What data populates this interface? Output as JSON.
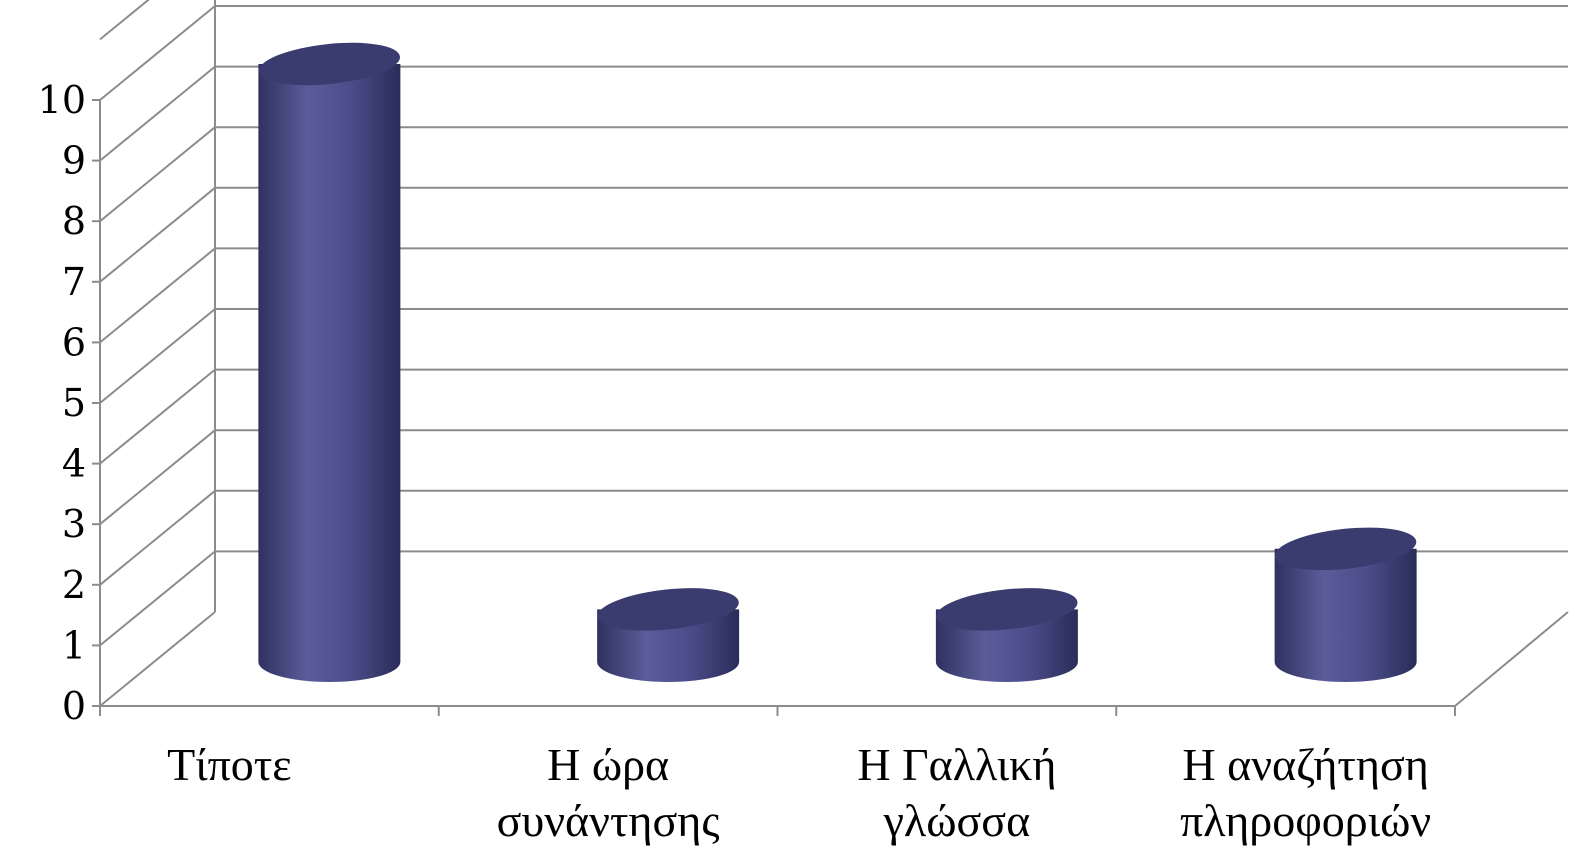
{
  "chart_data": {
    "type": "bar",
    "style": "3d-cylinder",
    "categories": [
      [
        "Τίποτε"
      ],
      [
        "Η ώρα",
        "συνάντησης"
      ],
      [
        "Η Γαλλική",
        "γλώσσα"
      ],
      [
        "Η αναζήτηση",
        "πληροφοριών"
      ]
    ],
    "values": [
      10,
      1,
      1,
      2
    ],
    "ylim": [
      0,
      10
    ],
    "yticks": [
      0,
      1,
      2,
      3,
      4,
      5,
      6,
      7,
      8,
      9,
      10
    ],
    "grid": true,
    "legend": "none",
    "title": "",
    "xlabel": "",
    "ylabel": "",
    "colors": {
      "bar_dark": "#2f3160",
      "bar_mid": "#4b4d8a",
      "bar_light": "#5b5d9a",
      "bar_top": "#3a3c70",
      "grid": "#8c8c8c"
    }
  }
}
